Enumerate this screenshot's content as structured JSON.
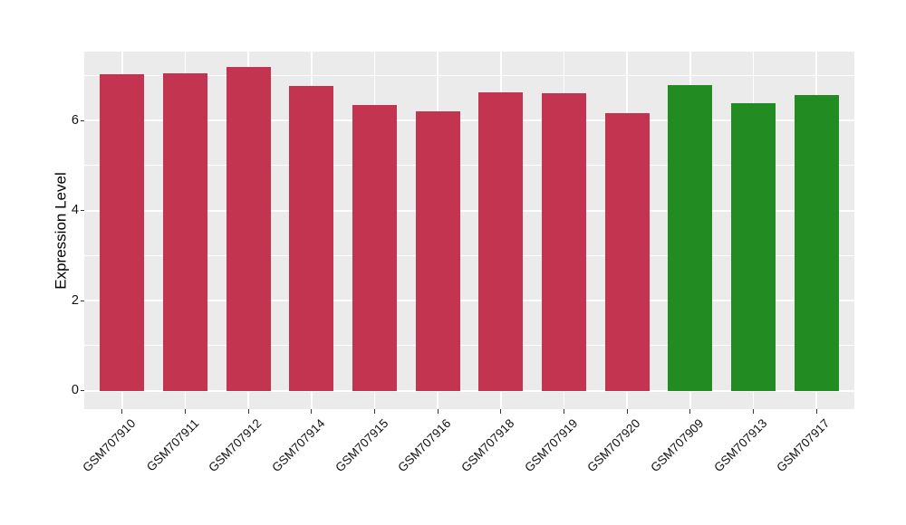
{
  "chart_data": {
    "type": "bar",
    "title": "",
    "xlabel": "",
    "ylabel": "Expression Level",
    "categories": [
      "GSM707910",
      "GSM707911",
      "GSM707912",
      "GSM707914",
      "GSM707915",
      "GSM707916",
      "GSM707918",
      "GSM707919",
      "GSM707920",
      "GSM707909",
      "GSM707913",
      "GSM707917"
    ],
    "values": [
      7.02,
      7.05,
      7.19,
      6.76,
      6.35,
      6.21,
      6.63,
      6.61,
      6.16,
      6.78,
      6.39,
      6.57
    ],
    "bar_colors": [
      "#C33450",
      "#C33450",
      "#C33450",
      "#C33450",
      "#C33450",
      "#C33450",
      "#C33450",
      "#C33450",
      "#C33450",
      "#228B22",
      "#228B22",
      "#228B22"
    ],
    "palette": {
      "crimson_bars": "#C33450",
      "green_bars": "#228B22"
    },
    "yticks": [
      0,
      2,
      4,
      6
    ],
    "ytick_labels": [
      "0",
      "2",
      "4",
      "6"
    ],
    "minor_gridlines": [
      1,
      3,
      5,
      7
    ],
    "ylim": [
      -0.41,
      7.53
    ],
    "grid": true,
    "legend_position": "none",
    "panel_background": "#EBEBEB",
    "grid_color": "#FFFFFF",
    "axis_text_color": "#111111",
    "tick_mark_color": "#333333"
  }
}
